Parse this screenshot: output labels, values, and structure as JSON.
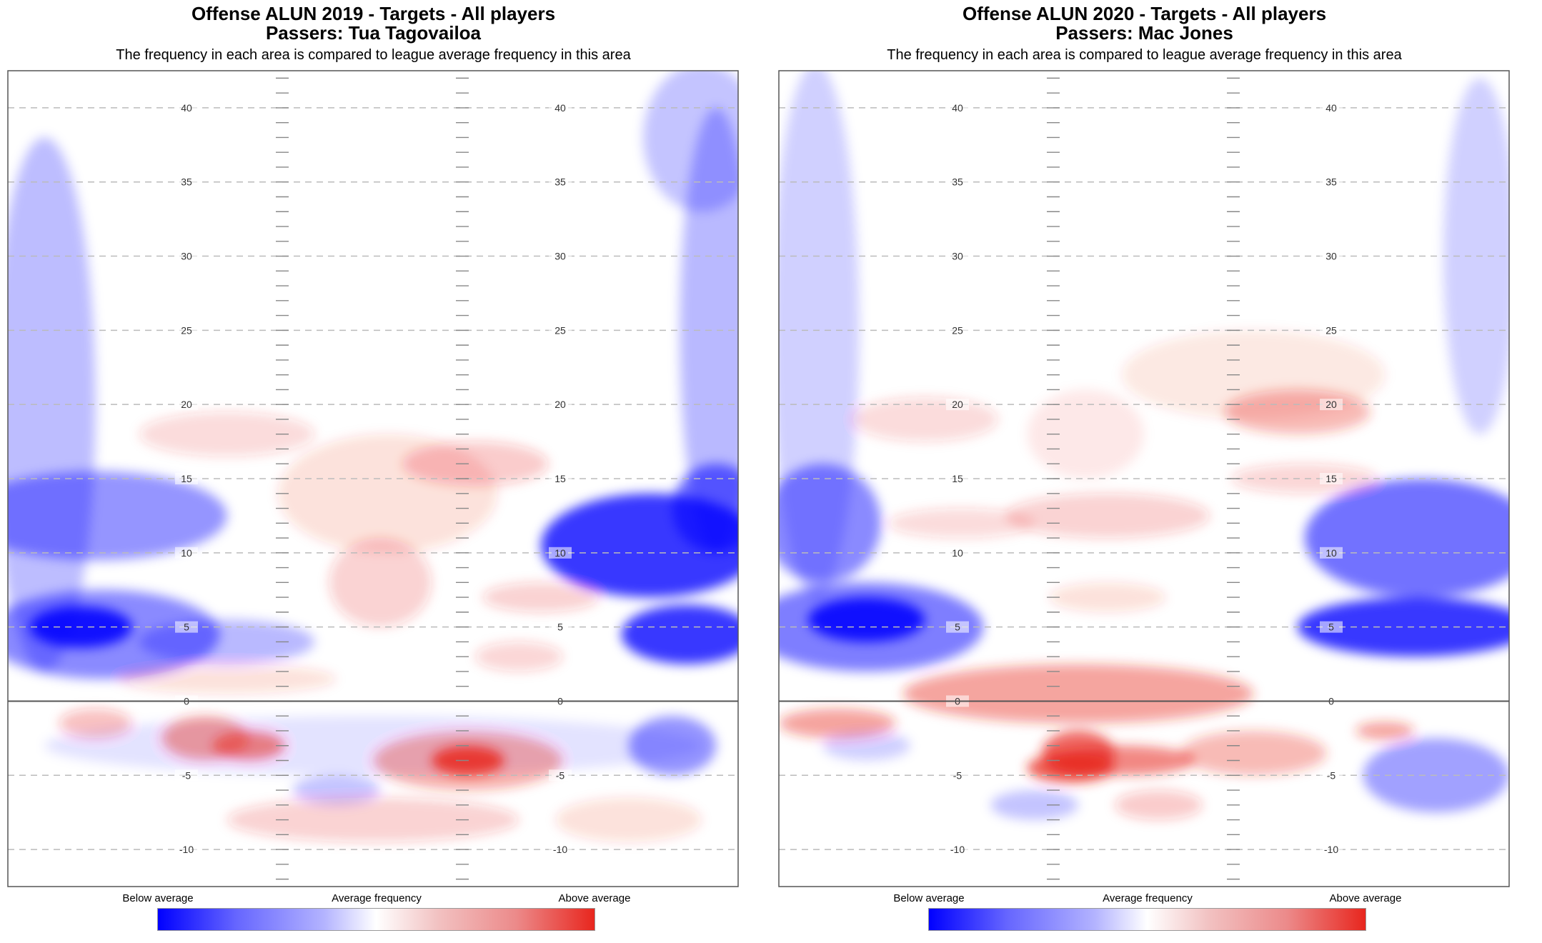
{
  "colors": {
    "below": "#0000ff",
    "average": "#ffffff",
    "above": "#e8261e",
    "line_of_scrimmage": "#555555",
    "gridline": "#bbbbbb",
    "hash": "#888888"
  },
  "colorbar": {
    "below_label": "Below average",
    "mid_label": "Average frequency",
    "above_label": "Above average"
  },
  "chart_data": [
    {
      "type": "heatmap",
      "title": "Offense ALUN 2019 - Targets - All players",
      "title_line2": "Passers: Tua Tagovailoa",
      "subtitle": "The frequency in each area is compared to league average frequency in this area",
      "ylabel": "",
      "xlabel": "",
      "ylim": [
        -12.5,
        42.5
      ],
      "yard_ticks": [
        "40",
        "35",
        "30",
        "25",
        "20",
        "15",
        "10",
        "5",
        "0",
        "-5",
        "-10"
      ],
      "yard_values": [
        40,
        35,
        30,
        25,
        20,
        15,
        10,
        5,
        0,
        -5,
        -10
      ],
      "line_of_scrimmage": 0,
      "grid": true,
      "scale_min": -1,
      "scale_max": 1,
      "blobs": [
        {
          "x": 0.1,
          "y": 5,
          "rx": 0.07,
          "ry": 1.4,
          "v": -0.95
        },
        {
          "x": 0.13,
          "y": 4.5,
          "rx": 0.16,
          "ry": 3,
          "v": -0.5
        },
        {
          "x": 0.93,
          "y": 4.5,
          "rx": 0.09,
          "ry": 2,
          "v": -0.85
        },
        {
          "x": 0.88,
          "y": 10.5,
          "rx": 0.15,
          "ry": 3.5,
          "v": -0.85
        },
        {
          "x": 0.97,
          "y": 13,
          "rx": 0.06,
          "ry": 3,
          "v": -0.6
        },
        {
          "x": 0.12,
          "y": 12.5,
          "rx": 0.18,
          "ry": 3,
          "v": -0.45
        },
        {
          "x": 0.05,
          "y": 20,
          "rx": 0.07,
          "ry": 18,
          "v": -0.28
        },
        {
          "x": 0.97,
          "y": 25,
          "rx": 0.05,
          "ry": 15,
          "v": -0.3
        },
        {
          "x": 0.95,
          "y": 38,
          "rx": 0.08,
          "ry": 5,
          "v": -0.25
        },
        {
          "x": 0.5,
          "y": -3,
          "rx": 0.45,
          "ry": 2,
          "v": -0.12
        },
        {
          "x": 0.3,
          "y": 4,
          "rx": 0.12,
          "ry": 1.5,
          "v": -0.3
        },
        {
          "x": 0.91,
          "y": -3,
          "rx": 0.06,
          "ry": 2,
          "v": -0.45
        },
        {
          "x": 0.45,
          "y": -6,
          "rx": 0.06,
          "ry": 1,
          "v": -0.25
        },
        {
          "x": 0.63,
          "y": -4,
          "rx": 0.05,
          "ry": 1,
          "v": 0.9
        },
        {
          "x": 0.63,
          "y": -4,
          "rx": 0.13,
          "ry": 2,
          "v": 0.4
        },
        {
          "x": 0.33,
          "y": -3,
          "rx": 0.05,
          "ry": 1,
          "v": 0.6
        },
        {
          "x": 0.27,
          "y": -2.5,
          "rx": 0.06,
          "ry": 1.5,
          "v": 0.45
        },
        {
          "x": 0.12,
          "y": -1.5,
          "rx": 0.05,
          "ry": 1,
          "v": 0.3
        },
        {
          "x": 0.5,
          "y": -8,
          "rx": 0.2,
          "ry": 1.5,
          "v": 0.22
        },
        {
          "x": 0.85,
          "y": -8,
          "rx": 0.1,
          "ry": 1.5,
          "v": 0.15
        },
        {
          "x": 0.51,
          "y": 8,
          "rx": 0.07,
          "ry": 3,
          "v": 0.22
        },
        {
          "x": 0.52,
          "y": 14,
          "rx": 0.15,
          "ry": 4,
          "v": 0.15
        },
        {
          "x": 0.3,
          "y": 18,
          "rx": 0.12,
          "ry": 1.5,
          "v": 0.18
        },
        {
          "x": 0.64,
          "y": 16,
          "rx": 0.1,
          "ry": 1.5,
          "v": 0.25
        },
        {
          "x": 0.73,
          "y": 7,
          "rx": 0.08,
          "ry": 1,
          "v": 0.22
        },
        {
          "x": 0.3,
          "y": 1.5,
          "rx": 0.15,
          "ry": 1,
          "v": 0.15
        },
        {
          "x": 0.7,
          "y": 3,
          "rx": 0.06,
          "ry": 1,
          "v": 0.2
        }
      ]
    },
    {
      "type": "heatmap",
      "title": "Offense ALUN 2020 - Targets - All players",
      "title_line2": "Passers: Mac Jones",
      "subtitle": "The frequency in each area is compared to league average frequency in this area",
      "ylabel": "",
      "xlabel": "",
      "ylim": [
        -12.5,
        42.5
      ],
      "yard_ticks": [
        "40",
        "35",
        "30",
        "25",
        "20",
        "15",
        "10",
        "5",
        "0",
        "-5",
        "-10"
      ],
      "yard_values": [
        40,
        35,
        30,
        25,
        20,
        15,
        10,
        5,
        0,
        -5,
        -10
      ],
      "line_of_scrimmage": 0,
      "grid": true,
      "scale_min": -1,
      "scale_max": 1,
      "blobs": [
        {
          "x": 0.12,
          "y": 5.5,
          "rx": 0.08,
          "ry": 1.5,
          "v": -0.95
        },
        {
          "x": 0.12,
          "y": 5,
          "rx": 0.16,
          "ry": 3,
          "v": -0.55
        },
        {
          "x": 0.87,
          "y": 5,
          "rx": 0.16,
          "ry": 2,
          "v": -0.85
        },
        {
          "x": 0.88,
          "y": 11,
          "rx": 0.16,
          "ry": 4,
          "v": -0.6
        },
        {
          "x": 0.06,
          "y": 12,
          "rx": 0.08,
          "ry": 4,
          "v": -0.5
        },
        {
          "x": 0.9,
          "y": -5,
          "rx": 0.1,
          "ry": 2.5,
          "v": -0.4
        },
        {
          "x": 0.05,
          "y": 25,
          "rx": 0.06,
          "ry": 18,
          "v": -0.2
        },
        {
          "x": 0.96,
          "y": 30,
          "rx": 0.05,
          "ry": 12,
          "v": -0.2
        },
        {
          "x": 0.35,
          "y": -7,
          "rx": 0.06,
          "ry": 1,
          "v": -0.25
        },
        {
          "x": 0.12,
          "y": -3,
          "rx": 0.06,
          "ry": 1,
          "v": -0.2
        },
        {
          "x": 0.41,
          "y": 0.5,
          "rx": 0.24,
          "ry": 2,
          "v": 0.45
        },
        {
          "x": 0.41,
          "y": -3.5,
          "rx": 0.05,
          "ry": 1.5,
          "v": 0.75
        },
        {
          "x": 0.4,
          "y": -4.5,
          "rx": 0.06,
          "ry": 1,
          "v": 0.8
        },
        {
          "x": 0.47,
          "y": -4,
          "rx": 0.1,
          "ry": 1,
          "v": 0.6
        },
        {
          "x": 0.08,
          "y": -1.5,
          "rx": 0.08,
          "ry": 1,
          "v": 0.45
        },
        {
          "x": 0.65,
          "y": -3.5,
          "rx": 0.1,
          "ry": 1.5,
          "v": 0.35
        },
        {
          "x": 0.83,
          "y": -2,
          "rx": 0.04,
          "ry": 0.6,
          "v": 0.45
        },
        {
          "x": 0.52,
          "y": -7,
          "rx": 0.06,
          "ry": 1,
          "v": 0.25
        },
        {
          "x": 0.71,
          "y": 19.5,
          "rx": 0.1,
          "ry": 1.5,
          "v": 0.35
        },
        {
          "x": 0.65,
          "y": 22,
          "rx": 0.18,
          "ry": 3,
          "v": 0.12
        },
        {
          "x": 0.45,
          "y": 12.5,
          "rx": 0.14,
          "ry": 1.5,
          "v": 0.22
        },
        {
          "x": 0.25,
          "y": 12,
          "rx": 0.1,
          "ry": 1,
          "v": 0.18
        },
        {
          "x": 0.2,
          "y": 19,
          "rx": 0.1,
          "ry": 1.5,
          "v": 0.18
        },
        {
          "x": 0.72,
          "y": 15,
          "rx": 0.1,
          "ry": 1,
          "v": 0.2
        },
        {
          "x": 0.45,
          "y": 7,
          "rx": 0.08,
          "ry": 1,
          "v": 0.15
        },
        {
          "x": 0.42,
          "y": 18,
          "rx": 0.08,
          "ry": 3,
          "v": 0.1
        }
      ]
    }
  ]
}
